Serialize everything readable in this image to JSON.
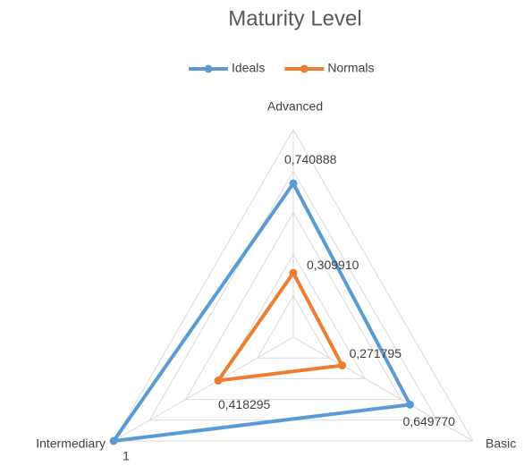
{
  "chart_data": {
    "type": "radar",
    "title": "Maturity Level",
    "categories": [
      "Advanced",
      "Basic",
      "Intermediary"
    ],
    "series": [
      {
        "name": "Ideals",
        "color": "#5b9bd5",
        "values": [
          0.740888,
          0.64977,
          1
        ],
        "value_labels": [
          "0,740888",
          "0,649770",
          "1"
        ]
      },
      {
        "name": "Normals",
        "color": "#ed7d31",
        "values": [
          0.30991,
          0.271795,
          0.418295
        ],
        "value_labels": [
          "0,309910",
          "0,271795",
          "0,418295"
        ]
      }
    ],
    "ylim": [
      0,
      1
    ],
    "yticks": [
      0,
      0.2,
      0.4,
      0.6,
      0.8,
      1
    ],
    "grid": true,
    "legend": "top"
  }
}
